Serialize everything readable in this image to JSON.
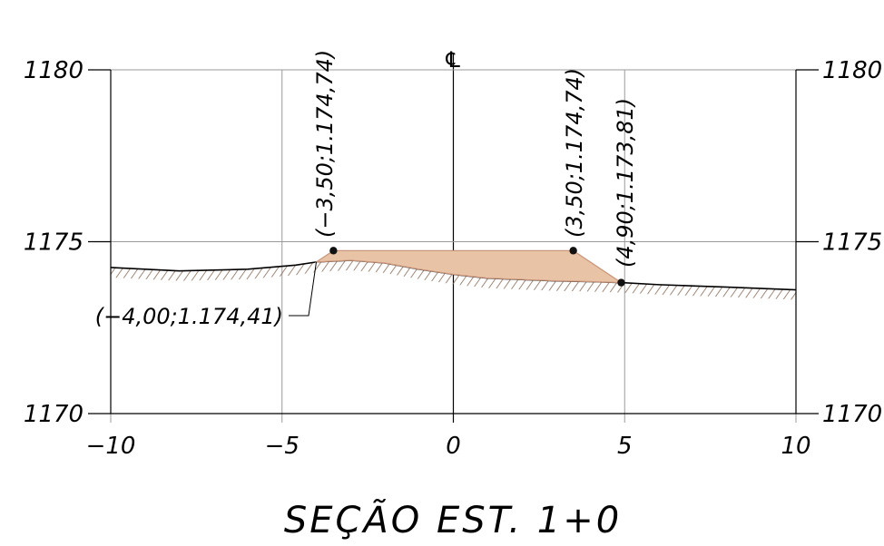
{
  "title": "SEÇÃO EST. 1+0",
  "centerline_symbol": "℄",
  "colors": {
    "fill": "#e9c3a6",
    "fill_stroke": "#c9957a",
    "ground_line": "#000000",
    "hatch": "#8a6a55",
    "grid": "#9a9a9a"
  },
  "chart_data": {
    "type": "cross-section",
    "x_ticks": [
      "−10",
      "−5",
      "0",
      "5",
      "10"
    ],
    "y_ticks": [
      "1180",
      "1175",
      "1170"
    ],
    "xlim": [
      -10,
      10
    ],
    "ylim": [
      1170,
      1180
    ],
    "fill_section": [
      {
        "x": -4.0,
        "y": 1174.41
      },
      {
        "x": -3.5,
        "y": 1174.74
      },
      {
        "x": 3.5,
        "y": 1174.74
      },
      {
        "x": 4.9,
        "y": 1173.81
      }
    ],
    "ground_profile": [
      {
        "x": -10,
        "y": 1174.25
      },
      {
        "x": -8,
        "y": 1174.15
      },
      {
        "x": -6,
        "y": 1174.2
      },
      {
        "x": -4.6,
        "y": 1174.32
      },
      {
        "x": -4.0,
        "y": 1174.41
      },
      {
        "x": -3.0,
        "y": 1174.46
      },
      {
        "x": -2.0,
        "y": 1174.38
      },
      {
        "x": -1.0,
        "y": 1174.2
      },
      {
        "x": 0.0,
        "y": 1174.05
      },
      {
        "x": 1.0,
        "y": 1173.94
      },
      {
        "x": 2.0,
        "y": 1173.9
      },
      {
        "x": 3.0,
        "y": 1173.86
      },
      {
        "x": 4.0,
        "y": 1173.84
      },
      {
        "x": 4.9,
        "y": 1173.81
      },
      {
        "x": 6.0,
        "y": 1173.75
      },
      {
        "x": 8.0,
        "y": 1173.68
      },
      {
        "x": 10.0,
        "y": 1173.6
      }
    ],
    "points": [
      {
        "label": "(−3,50;1.174,74)",
        "x": -3.5,
        "y": 1174.74
      },
      {
        "label": "(3,50;1.174,74)",
        "x": 3.5,
        "y": 1174.74
      },
      {
        "label": "(4,90;1.173,81)",
        "x": 4.9,
        "y": 1173.81
      },
      {
        "label": "(−4,00;1.174,41)",
        "x": -4.0,
        "y": 1174.41
      }
    ]
  }
}
